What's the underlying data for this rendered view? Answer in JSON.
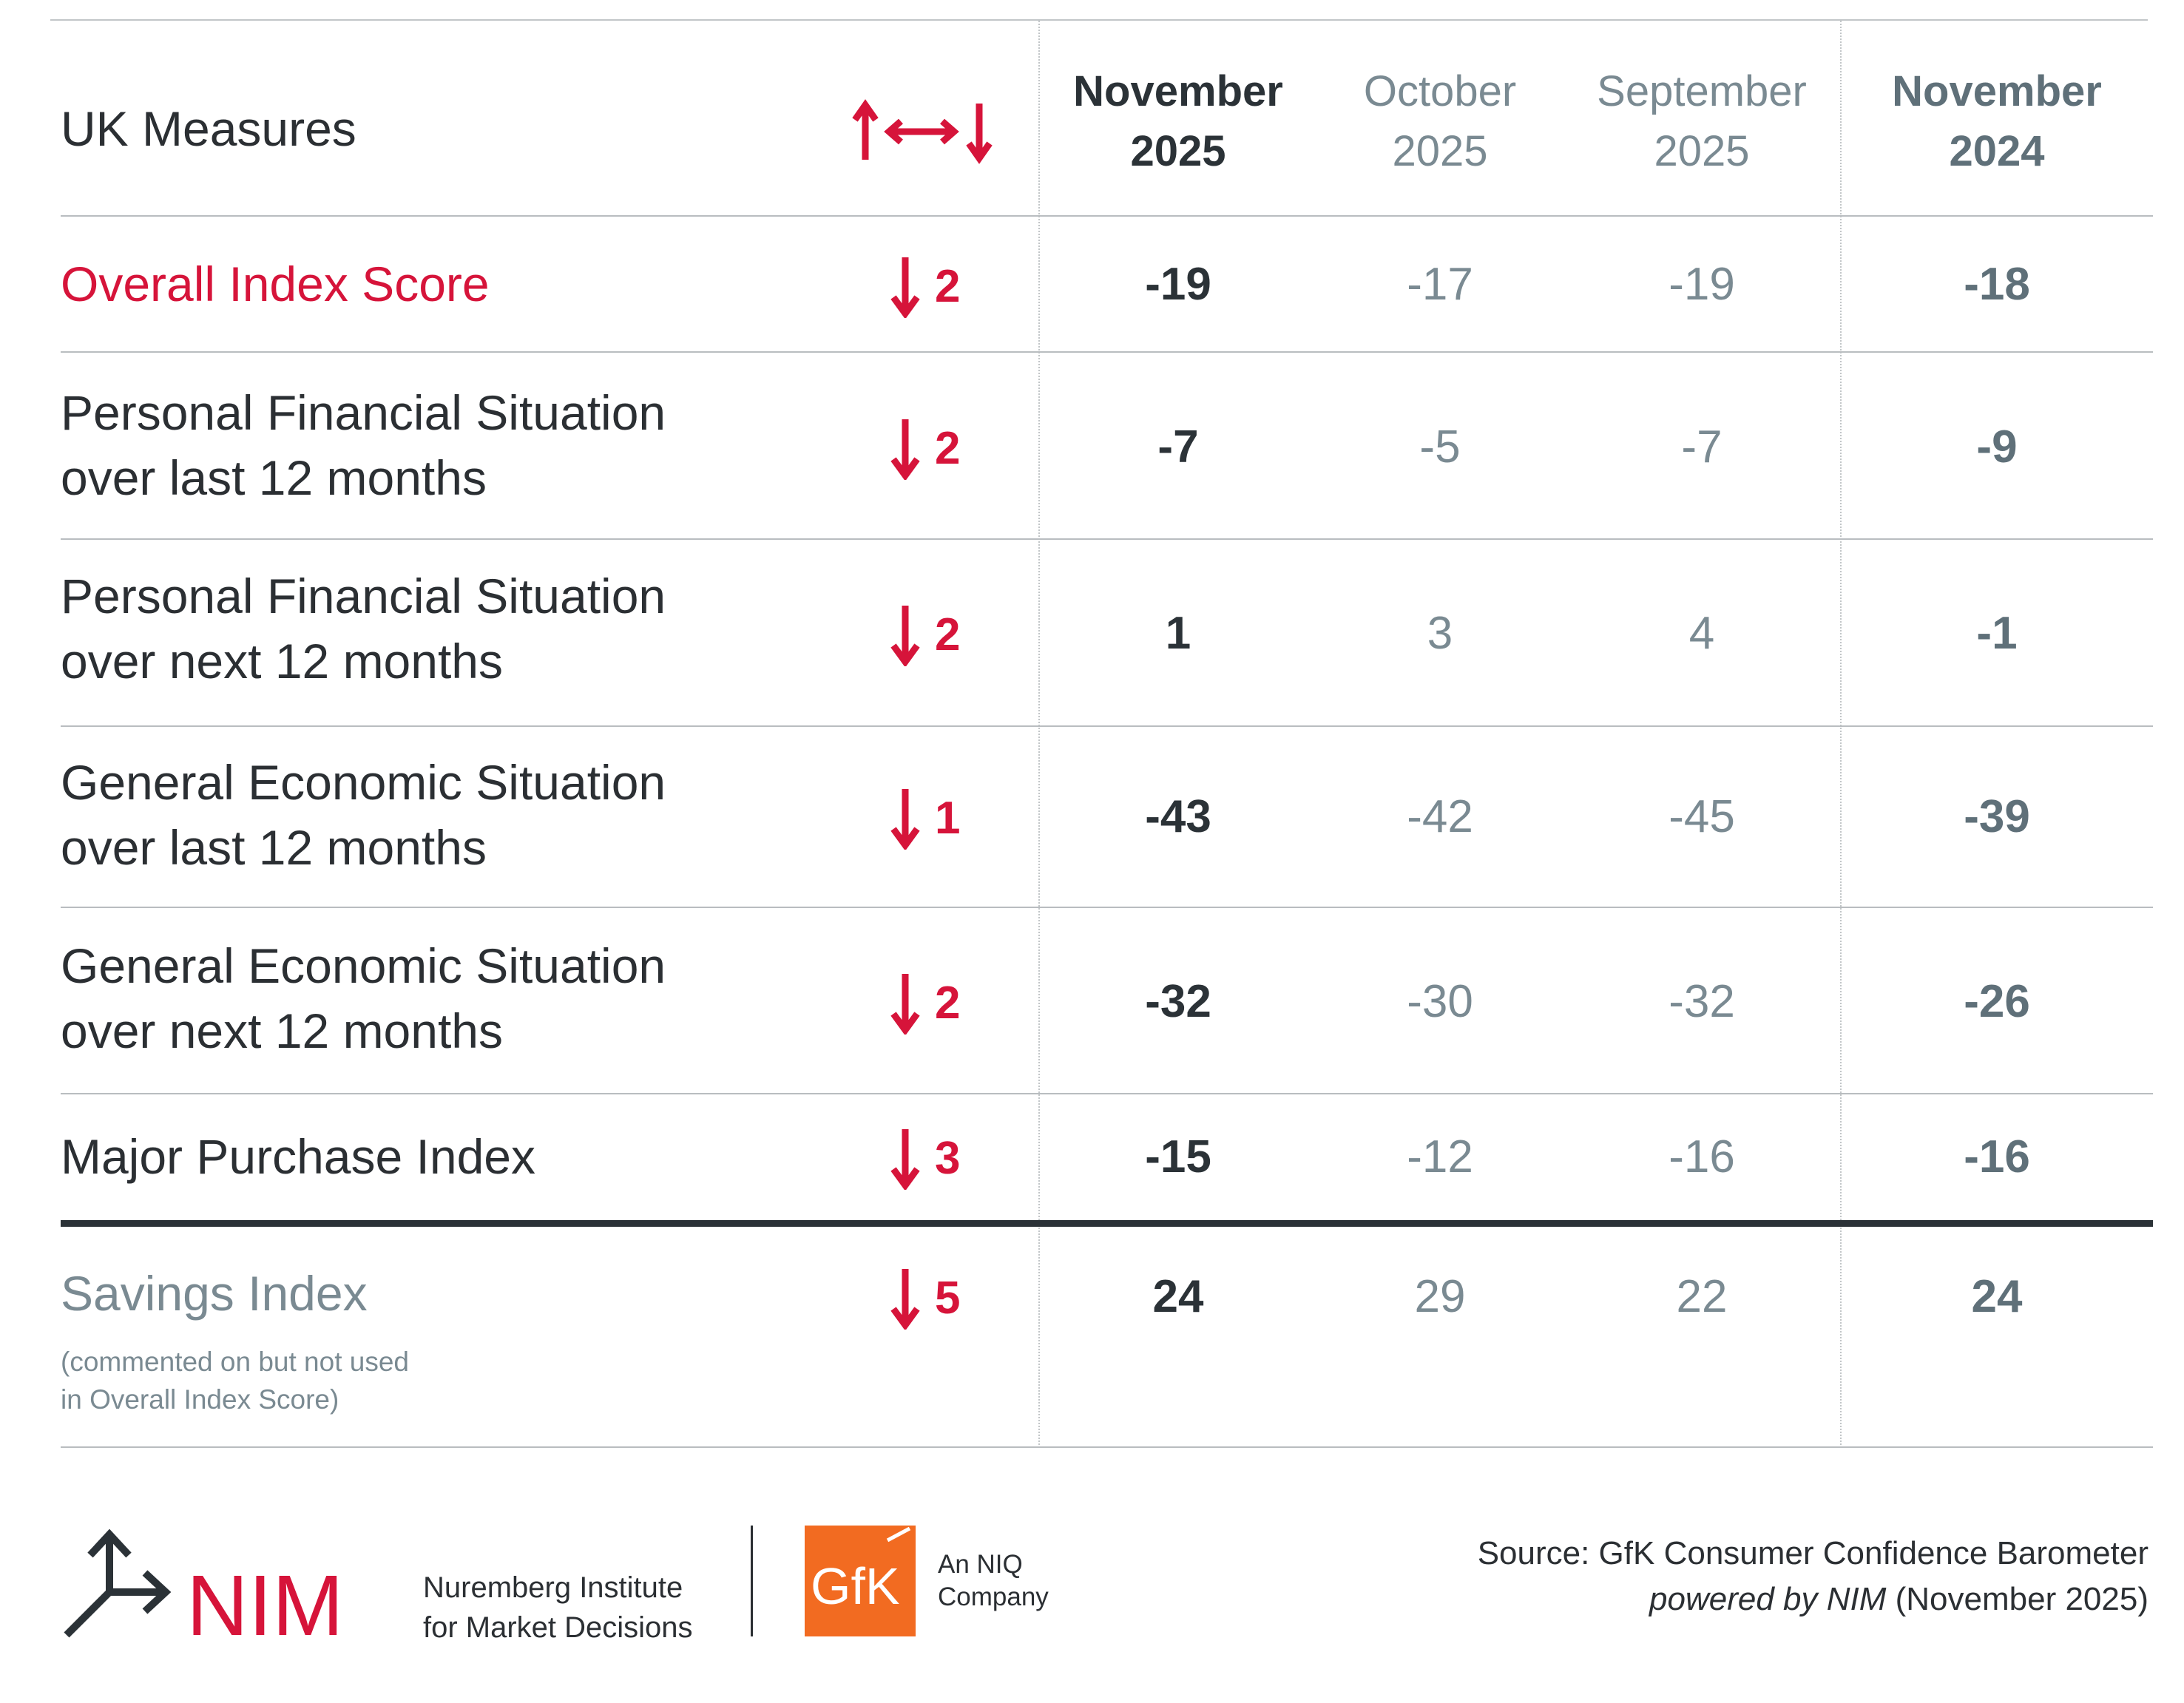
{
  "table": {
    "title": "UK Measures",
    "headers": [
      {
        "month": "November",
        "year": "2025"
      },
      {
        "month": "October",
        "year": "2025"
      },
      {
        "month": "September",
        "year": "2025"
      },
      {
        "month": "November",
        "year": "2024"
      }
    ],
    "rows": [
      {
        "line1": "Overall Index Score",
        "line2": "",
        "trend": "down",
        "change": "2",
        "values": [
          "-19",
          "-17",
          "-19",
          "-18"
        ]
      },
      {
        "line1": "Personal Financial Situation",
        "line2": "over last 12 months",
        "trend": "down",
        "change": "2",
        "values": [
          "-7",
          "-5",
          "-7",
          "-9"
        ]
      },
      {
        "line1": "Personal Financial Situation",
        "line2": "over next 12 months",
        "trend": "down",
        "change": "2",
        "values": [
          "1",
          "3",
          "4",
          "-1"
        ]
      },
      {
        "line1": "General Economic Situation",
        "line2": "over last 12 months",
        "trend": "down",
        "change": "1",
        "values": [
          "-43",
          "-42",
          "-45",
          "-39"
        ]
      },
      {
        "line1": "General Economic Situation",
        "line2": "over next 12 months",
        "trend": "down",
        "change": "2",
        "values": [
          "-32",
          "-30",
          "-32",
          "-26"
        ]
      },
      {
        "line1": "Major Purchase Index",
        "line2": "",
        "trend": "down",
        "change": "3",
        "values": [
          "-15",
          "-12",
          "-16",
          "-16"
        ]
      }
    ],
    "savings": {
      "label": "Savings Index",
      "note_line1": "(commented on but not used",
      "note_line2": "in Overall Index Score)",
      "trend": "down",
      "change": "5",
      "values": [
        "24",
        "29",
        "22",
        "24"
      ]
    }
  },
  "footer": {
    "nim_wordmark": "NIM",
    "nim_name_line1": "Nuremberg Institute",
    "nim_name_line2": "for Market Decisions",
    "gfk_wordmark": "GfK",
    "gfk_sub_line1": "An NIQ",
    "gfk_sub_line2": "Company",
    "source_line1": "Source: GfK Consumer Confidence Barometer",
    "source_italic": "powered by NIM",
    "source_date": "(November 2025)"
  },
  "colors": {
    "accent_red": "#d6143a",
    "text_dark": "#2b3237",
    "text_grey": "#7a8a92",
    "gfk_orange": "#f26b21"
  },
  "icons": [
    "trend-legend-icon",
    "arrow-down-icon",
    "nim-logo-icon",
    "gfk-logo-icon"
  ]
}
